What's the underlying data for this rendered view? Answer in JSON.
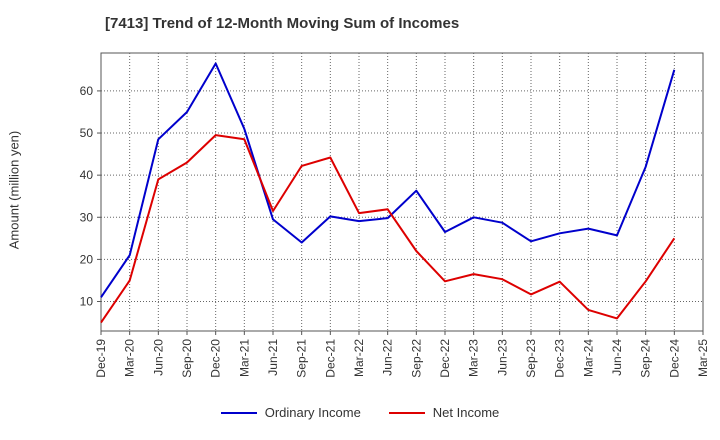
{
  "chart_data": {
    "type": "line",
    "title": "[7413]  Trend of 12-Month Moving Sum of Incomes",
    "ylabel": "Amount (million yen)",
    "xlabel": "",
    "categories": [
      "Dec-19",
      "Mar-20",
      "Jun-20",
      "Sep-20",
      "Dec-20",
      "Mar-21",
      "Jun-21",
      "Sep-21",
      "Dec-21",
      "Mar-22",
      "Jun-22",
      "Sep-22",
      "Dec-22",
      "Mar-23",
      "Jun-23",
      "Sep-23",
      "Dec-23",
      "Mar-24",
      "Jun-24",
      "Sep-24",
      "Dec-24",
      "Mar-25"
    ],
    "yticks": [
      10,
      20,
      30,
      40,
      50,
      60
    ],
    "ylim": [
      3,
      69
    ],
    "grid": true,
    "legend_position": "bottom",
    "series": [
      {
        "name": "Ordinary Income",
        "color": "#0000cc",
        "values": [
          11,
          21,
          48.5,
          55,
          66.5,
          51,
          29.5,
          24,
          30.2,
          29.1,
          29.8,
          36.3,
          26.5,
          30,
          28.7,
          24.3,
          26.2,
          27.3,
          25.7,
          42,
          65,
          null
        ]
      },
      {
        "name": "Net Income",
        "color": "#dd0000",
        "values": [
          5,
          15,
          39,
          43,
          49.5,
          48.5,
          31.5,
          42.2,
          44.2,
          31,
          31.9,
          22,
          14.8,
          16.5,
          15.3,
          11.7,
          14.7,
          8,
          6,
          14.8,
          25,
          null
        ]
      }
    ]
  }
}
